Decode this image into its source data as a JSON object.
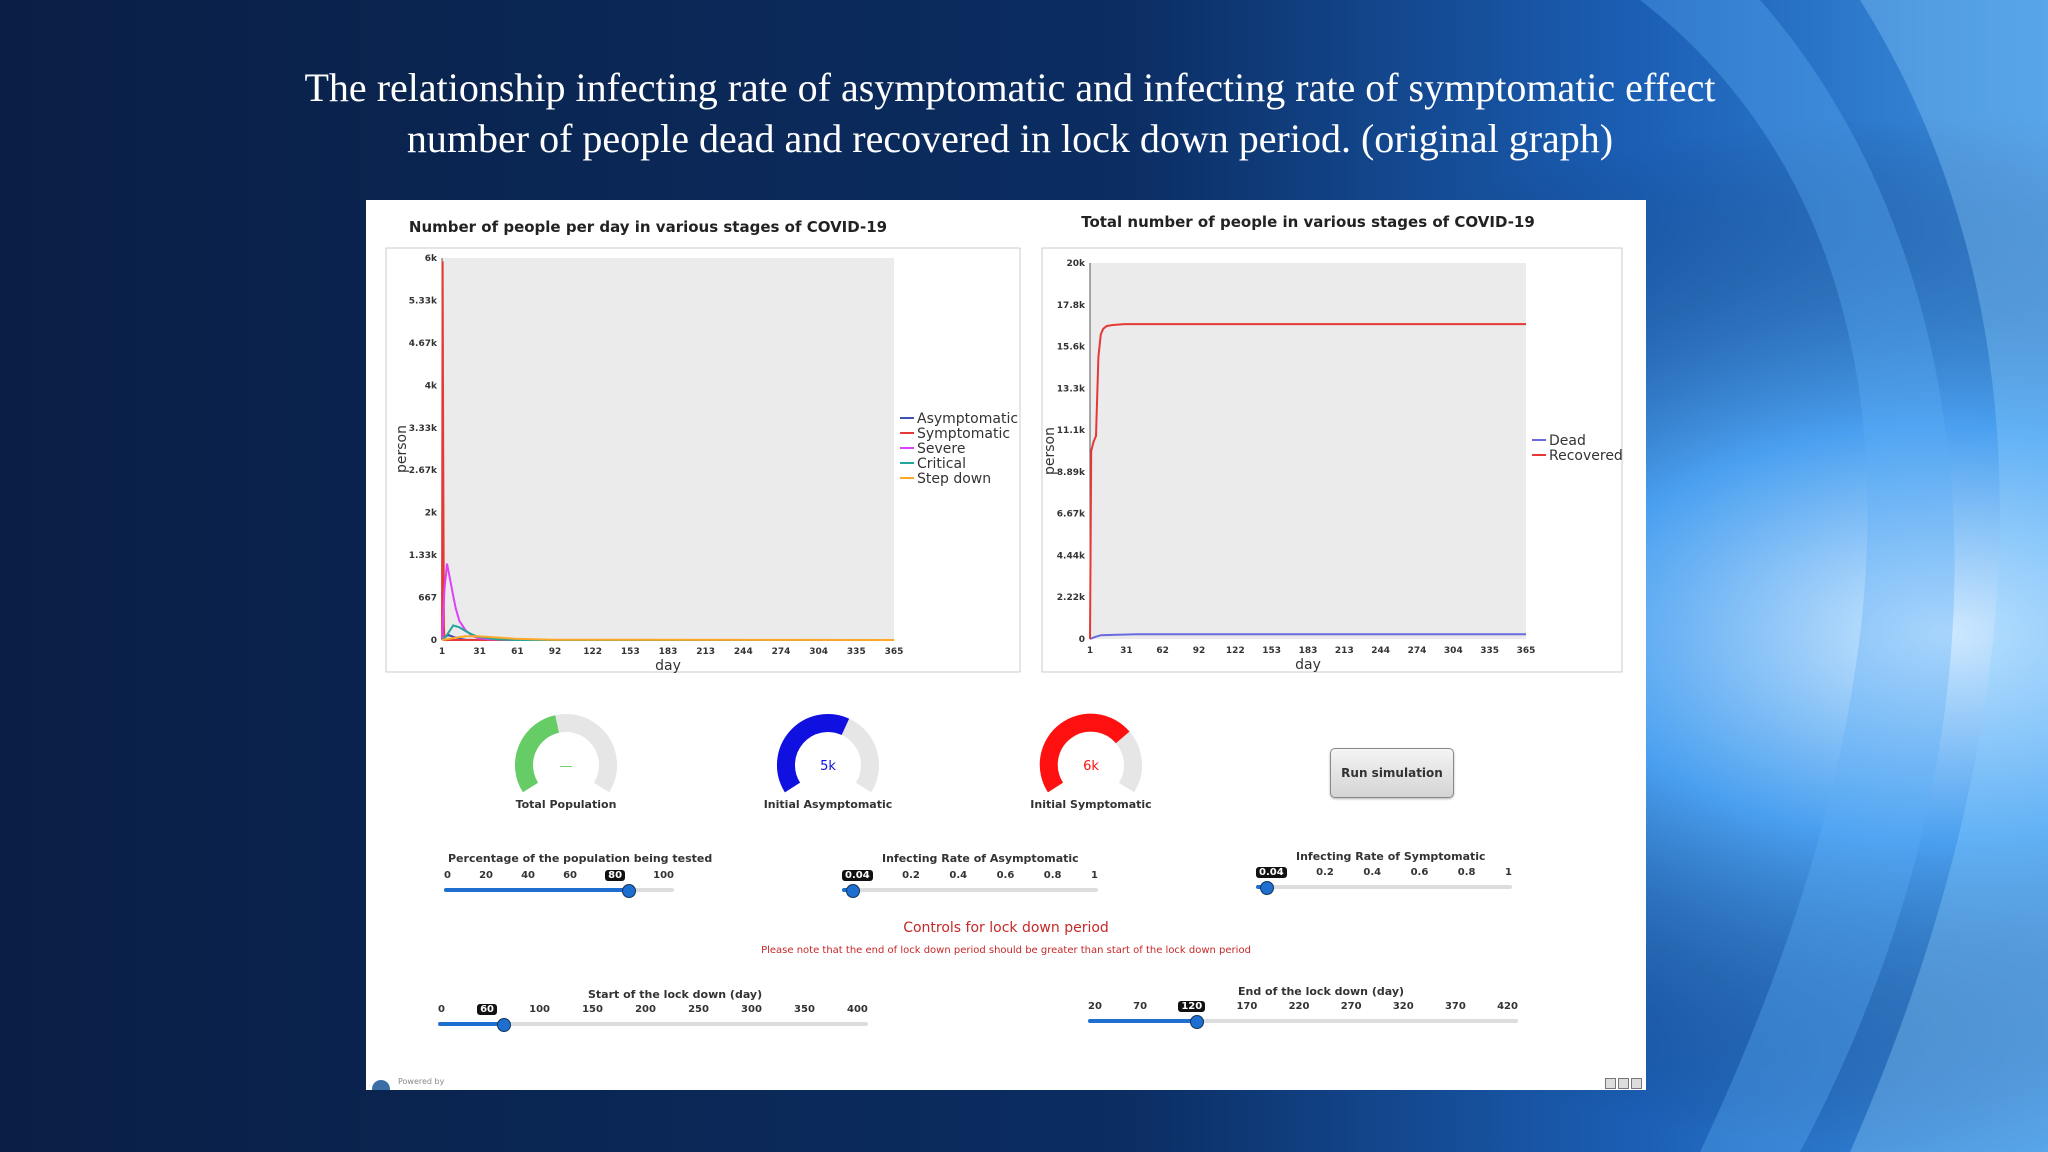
{
  "slide": {
    "title_line1": "The relationship infecting rate of asymptomatic and infecting rate of symptomatic effect",
    "title_line2": "number of people dead and recovered in lock down period. (original graph)"
  },
  "charts": {
    "left": {
      "title": "Number of people per day in various stages of COVID-19",
      "xlabel": "day",
      "ylabel": "person",
      "y_ticks": [
        "0",
        "667",
        "1.33k",
        "2k",
        "2.67k",
        "3.33k",
        "4k",
        "4.67k",
        "5.33k",
        "6k"
      ],
      "x_ticks": [
        "1",
        "31",
        "61",
        "92",
        "122",
        "153",
        "183",
        "213",
        "244",
        "274",
        "304",
        "335",
        "365"
      ],
      "legend": [
        "Asymptomatic",
        "Symptomatic",
        "Severe",
        "Critical",
        "Step down"
      ]
    },
    "right": {
      "title": "Total number of people in various stages of COVID-19",
      "xlabel": "day",
      "ylabel": "person",
      "y_ticks": [
        "0",
        "2.22k",
        "4.44k",
        "6.67k",
        "8.89k",
        "11.1k",
        "13.3k",
        "15.6k",
        "17.8k",
        "20k"
      ],
      "x_ticks": [
        "1",
        "31",
        "62",
        "92",
        "122",
        "153",
        "183",
        "213",
        "244",
        "274",
        "304",
        "335",
        "365"
      ],
      "legend": [
        "Dead",
        "Recovered"
      ]
    }
  },
  "chart_data": [
    {
      "type": "line",
      "title": "Number of people per day in various stages of COVID-19",
      "xlabel": "day",
      "ylabel": "person",
      "xlim": [
        1,
        365
      ],
      "ylim": [
        0,
        6000
      ],
      "legend_position": "right",
      "series": [
        {
          "name": "Asymptomatic",
          "color": "#3f51b5",
          "x": [
            1,
            3,
            6,
            10,
            15,
            20,
            30,
            60,
            365
          ],
          "values": [
            0,
            40,
            80,
            50,
            20,
            5,
            0,
            0,
            0
          ]
        },
        {
          "name": "Symptomatic",
          "color": "#e53935",
          "x": [
            1,
            1.5,
            2,
            2.5,
            3,
            365
          ],
          "values": [
            0,
            5950,
            3000,
            200,
            0,
            0
          ]
        },
        {
          "name": "Severe",
          "color": "#e040fb",
          "x": [
            1,
            3,
            5,
            7,
            9,
            12,
            15,
            20,
            25,
            30,
            40,
            60,
            365
          ],
          "values": [
            0,
            800,
            1200,
            1000,
            800,
            500,
            300,
            150,
            70,
            30,
            10,
            0,
            0
          ]
        },
        {
          "name": "Critical",
          "color": "#26a69a",
          "x": [
            1,
            5,
            10,
            15,
            20,
            25,
            30,
            45,
            60,
            365
          ],
          "values": [
            0,
            80,
            230,
            200,
            140,
            90,
            50,
            10,
            0,
            0
          ]
        },
        {
          "name": "Step down",
          "color": "#ffa726",
          "x": [
            1,
            10,
            20,
            30,
            45,
            60,
            90,
            365
          ],
          "values": [
            0,
            30,
            60,
            60,
            40,
            20,
            5,
            0
          ]
        }
      ]
    },
    {
      "type": "line",
      "title": "Total number of people in various stages of COVID-19",
      "xlabel": "day",
      "ylabel": "person",
      "xlim": [
        1,
        365
      ],
      "ylim": [
        0,
        20000
      ],
      "legend_position": "right",
      "series": [
        {
          "name": "Dead",
          "color": "#6a6ae0",
          "x": [
            1,
            5,
            10,
            20,
            40,
            365
          ],
          "values": [
            0,
            100,
            200,
            220,
            250,
            250
          ]
        },
        {
          "name": "Recovered",
          "color": "#e53935",
          "x": [
            1,
            2,
            4,
            6,
            8,
            10,
            12,
            15,
            20,
            30,
            60,
            365
          ],
          "values": [
            0,
            10000,
            10500,
            10800,
            15000,
            16200,
            16500,
            16650,
            16700,
            16750,
            16750,
            16750
          ]
        }
      ]
    }
  ],
  "gauges": [
    {
      "caption": "Total Population",
      "value_text": "—",
      "fraction": 0.45,
      "color": "#66cc66"
    },
    {
      "caption": "Initial Asymptomatic",
      "value_text": "5k",
      "fraction": 0.6,
      "color": "#1010e0"
    },
    {
      "caption": "Initial Symptomatic",
      "value_text": "6k",
      "fraction": 0.7,
      "color": "#ff1010"
    }
  ],
  "run_button": "Run simulation",
  "sliders": {
    "tested": {
      "label": "Percentage of the population being tested",
      "ticks": [
        "0",
        "20",
        "40",
        "60",
        "80",
        "100"
      ],
      "selected": "80",
      "fraction": 0.8
    },
    "asym_rate": {
      "label": "Infecting Rate of Asymptomatic",
      "ticks": [
        "0.04",
        "0.2",
        "0.4",
        "0.6",
        "0.8",
        "1"
      ],
      "selected": "0.04",
      "fraction": 0.04
    },
    "sym_rate": {
      "label": "Infecting Rate of Symptomatic",
      "ticks": [
        "0.04",
        "0.2",
        "0.4",
        "0.6",
        "0.8",
        "1"
      ],
      "selected": "0.04",
      "fraction": 0.04
    },
    "lock_start": {
      "label": "Start of the lock down (day)",
      "ticks": [
        "0",
        "60",
        "100",
        "150",
        "200",
        "250",
        "300",
        "350",
        "400"
      ],
      "selected": "60",
      "fraction": 0.15
    },
    "lock_end": {
      "label": "End of the lock down (day)",
      "ticks": [
        "20",
        "70",
        "120",
        "170",
        "220",
        "270",
        "320",
        "370",
        "420"
      ],
      "selected": "120",
      "fraction": 0.25
    }
  },
  "lockdown": {
    "title": "Controls for lock down period",
    "note": "Please note that the end of lock down period should be greater than start of the lock down period"
  },
  "footer": {
    "text": "Powered by"
  }
}
